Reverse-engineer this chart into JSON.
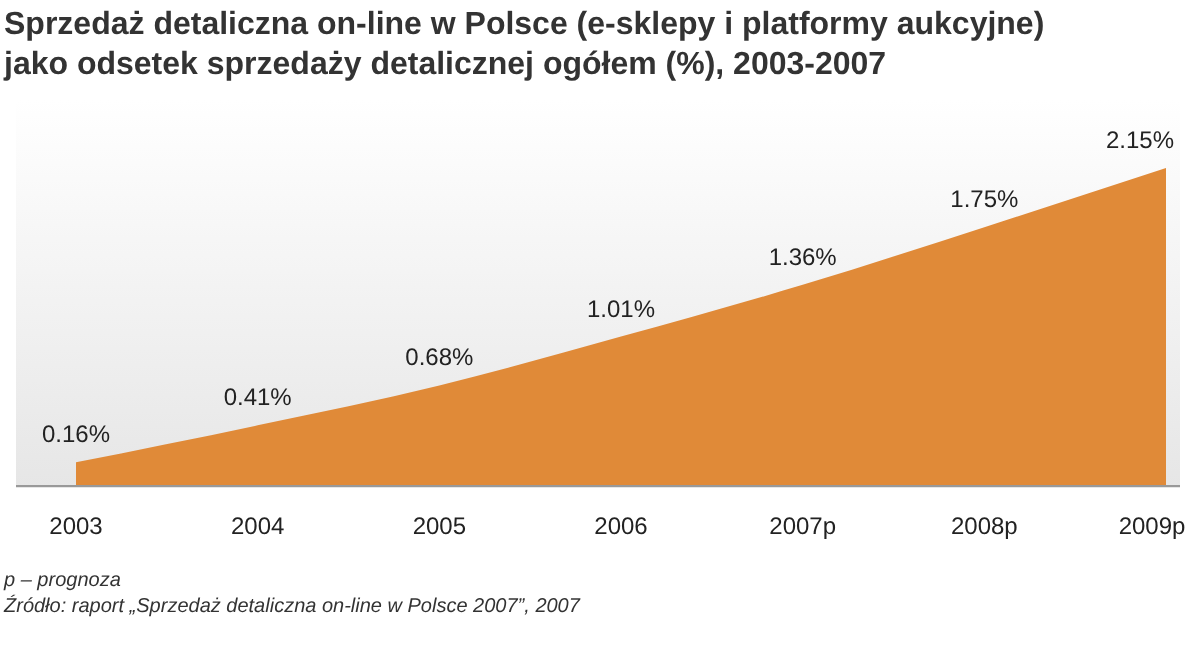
{
  "chart_data": {
    "type": "area",
    "title": "Sprzedaż detaliczna on-line w Polsce (e-sklepy i platformy aukcyjne) jako odsetek sprzedaży detalicznej ogółem (%), 2003-2007",
    "categories": [
      "2003",
      "2004",
      "2005",
      "2006",
      "2007p",
      "2008p",
      "2009p"
    ],
    "series": [
      {
        "color": "#e08a38",
        "values": [
          0.16,
          0.41,
          0.68,
          1.01,
          1.36,
          1.75,
          2.15
        ],
        "value_labels": [
          "0.16%",
          "0.41%",
          "0.68%",
          "1.01%",
          "1.36%",
          "1.75%",
          "2.15%"
        ]
      }
    ],
    "data_labels": true,
    "grid": false,
    "annotations": [
      "p – prognoza",
      "Źródło: raport „Sprzedaż detaliczna on-line w Polsce 2007”, 2007"
    ]
  }
}
